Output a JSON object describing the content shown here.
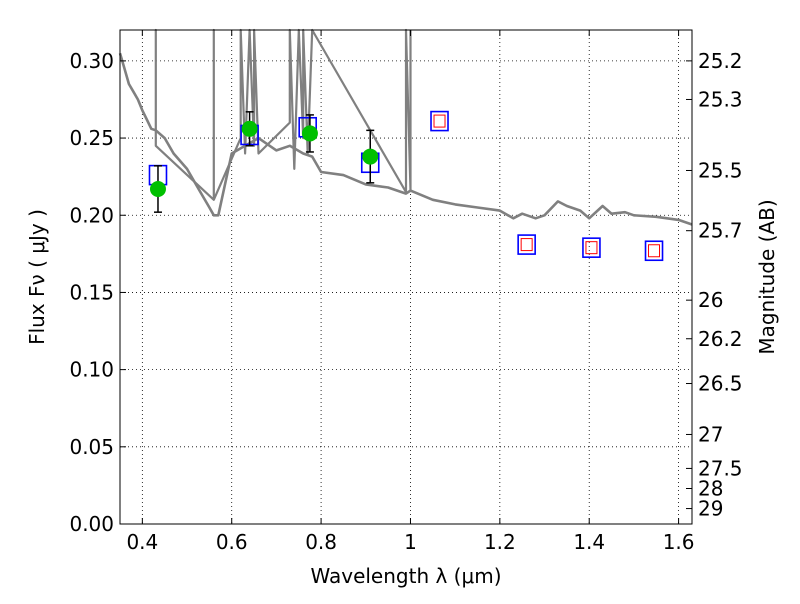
{
  "chart_data": {
    "type": "scatter",
    "title": "",
    "xlabel": "Wavelength  λ (μm)",
    "ylabel": "Flux  Fν  ( μJy )",
    "y2label": "Magnitude (AB)",
    "xlim": [
      0.35,
      1.63
    ],
    "ylim": [
      0.0,
      0.32
    ],
    "grid": true,
    "legend": "none",
    "x_ticks": [
      0.4,
      0.6,
      0.8,
      1.0,
      1.2,
      1.4,
      1.6
    ],
    "x_tick_labels": [
      "0.4",
      "0.6",
      "0.8",
      "1",
      "1.2",
      "1.4",
      "1.6"
    ],
    "y_ticks": [
      0.0,
      0.05,
      0.1,
      0.15,
      0.2,
      0.25,
      0.3
    ],
    "y_tick_labels": [
      "0.00",
      "0.05",
      "0.10",
      "0.15",
      "0.20",
      "0.25",
      "0.30"
    ],
    "y2_tick_labels": [
      "25.2",
      "25.3",
      "25.5",
      "25.7",
      "26",
      "26.2",
      "26.5",
      "27",
      "27.5",
      "28",
      "29"
    ],
    "y2_tick_flux": [
      0.3,
      0.275,
      0.229,
      0.19,
      0.145,
      0.12,
      0.091,
      0.058,
      0.036,
      0.023,
      0.01
    ],
    "colors": {
      "model": "#808080",
      "observed": "#00c000",
      "model_box": "#0000ff",
      "upper_box": "#ff0000",
      "errorbar": "#000000",
      "grid": "#000000"
    },
    "series": [
      {
        "marker": "line",
        "x": [
          0.35,
          0.36,
          0.37,
          0.38,
          0.39,
          0.4,
          0.41,
          0.42,
          0.43,
          0.45,
          0.47,
          0.5,
          0.53,
          0.55,
          0.56,
          0.57,
          0.6,
          0.63,
          0.66,
          0.7,
          0.73,
          0.76,
          0.78,
          0.8,
          0.85,
          0.9,
          0.95,
          0.99,
          1.0,
          1.05,
          1.1,
          1.15,
          1.2,
          1.23,
          1.25,
          1.28,
          1.3,
          1.33,
          1.35,
          1.38,
          1.4,
          1.43,
          1.45,
          1.48,
          1.5,
          1.55,
          1.6,
          1.63
        ],
        "y": [
          0.305,
          0.295,
          0.285,
          0.28,
          0.275,
          0.268,
          0.262,
          0.256,
          0.255,
          0.25,
          0.24,
          0.23,
          0.215,
          0.205,
          0.2,
          0.2,
          0.24,
          0.245,
          0.25,
          0.242,
          0.245,
          0.24,
          0.238,
          0.228,
          0.226,
          0.22,
          0.218,
          0.214,
          0.216,
          0.21,
          0.207,
          0.205,
          0.203,
          0.198,
          0.201,
          0.198,
          0.2,
          0.209,
          0.206,
          0.203,
          0.198,
          0.206,
          0.201,
          0.202,
          0.2,
          0.199,
          0.197,
          0.194
        ]
      },
      {
        "marker": "line",
        "x": [
          0.43,
          0.43,
          0.43,
          0.56,
          0.56,
          0.56,
          0.62,
          0.62,
          0.63,
          0.64,
          0.65,
          0.65,
          0.66,
          0.73,
          0.73,
          0.74,
          0.75,
          0.76,
          0.76,
          0.77,
          0.78,
          0.99,
          0.99,
          1.0,
          1.0
        ],
        "y": [
          0.245,
          0.32,
          0.245,
          0.21,
          0.32,
          0.21,
          0.25,
          0.32,
          0.24,
          0.32,
          0.245,
          0.32,
          0.24,
          0.26,
          0.32,
          0.23,
          0.32,
          0.25,
          0.32,
          0.24,
          0.32,
          0.215,
          0.32,
          0.216,
          0.32
        ]
      },
      {
        "marker": "circle",
        "x": [
          0.435,
          0.64,
          0.775,
          0.91
        ],
        "y": [
          0.217,
          0.256,
          0.253,
          0.238
        ],
        "err": [
          0.015,
          0.011,
          0.012,
          0.017
        ]
      },
      {
        "marker": "square",
        "x": [
          0.435,
          0.64,
          0.77,
          0.91,
          1.065,
          1.26,
          1.405,
          1.545
        ],
        "y": [
          0.226,
          0.252,
          0.257,
          0.234,
          0.261,
          0.181,
          0.179,
          0.177
        ]
      },
      {
        "marker": "square",
        "x": [
          1.065,
          1.26,
          1.405,
          1.545
        ],
        "y": [
          0.261,
          0.181,
          0.179,
          0.177
        ]
      }
    ]
  }
}
